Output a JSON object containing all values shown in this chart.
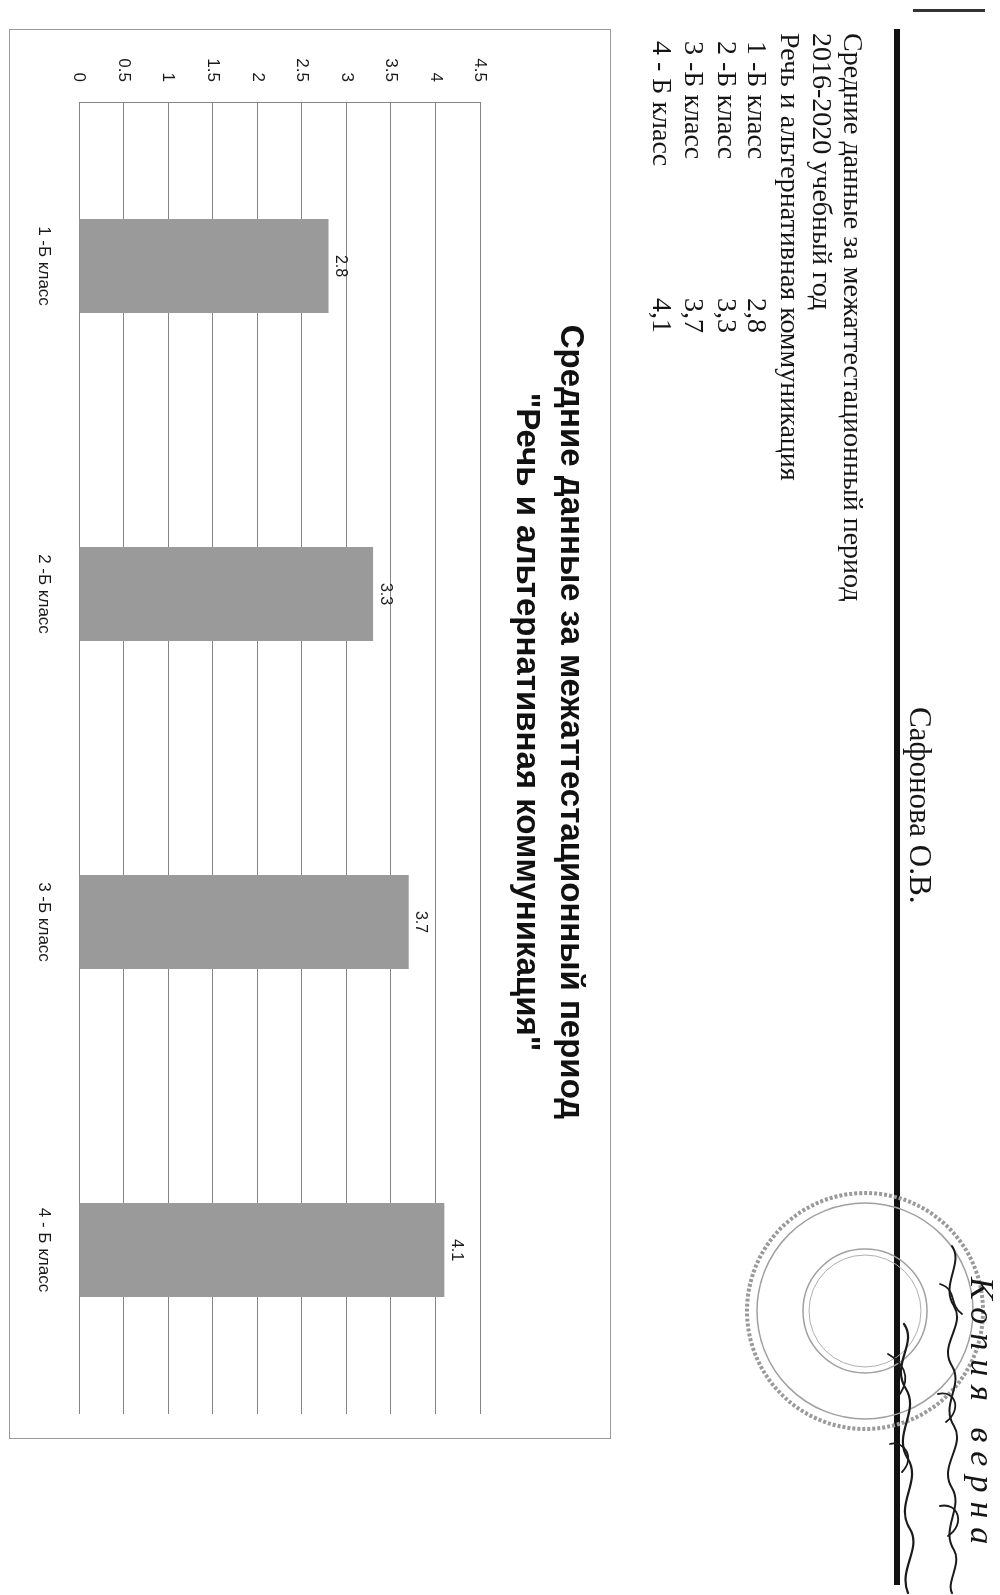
{
  "chart_data": {
    "type": "bar",
    "orientation": "horizontal",
    "title": "Средние данные за межаттестационный период\n\"Речь и альтернативная коммуникация\"",
    "categories": [
      "1 -Б класс",
      "2 -Б класс",
      "3 -Б класс",
      "4 - Б класс"
    ],
    "values": [
      2.8,
      3.3,
      3.7,
      4.1
    ],
    "color": "#9a9a9a",
    "xlim": [
      0,
      4.5
    ],
    "xticks": [
      0,
      0.5,
      1,
      1.5,
      2,
      2.5,
      3,
      3.5,
      4,
      4.5
    ],
    "grid": "x",
    "data_labels": true,
    "annotations": [
      "Сафонова О.В.",
      "Средние данные за межаттестационный период",
      "2016-2020 учебный год",
      "Речь и альтернативная коммуникация",
      "1 -Б класс",
      "2,8",
      "2 -Б класс",
      "3,3",
      "3 -Б класс",
      "3,7",
      "4 - Б класс",
      "4,1",
      "Копия верна"
    ]
  }
}
